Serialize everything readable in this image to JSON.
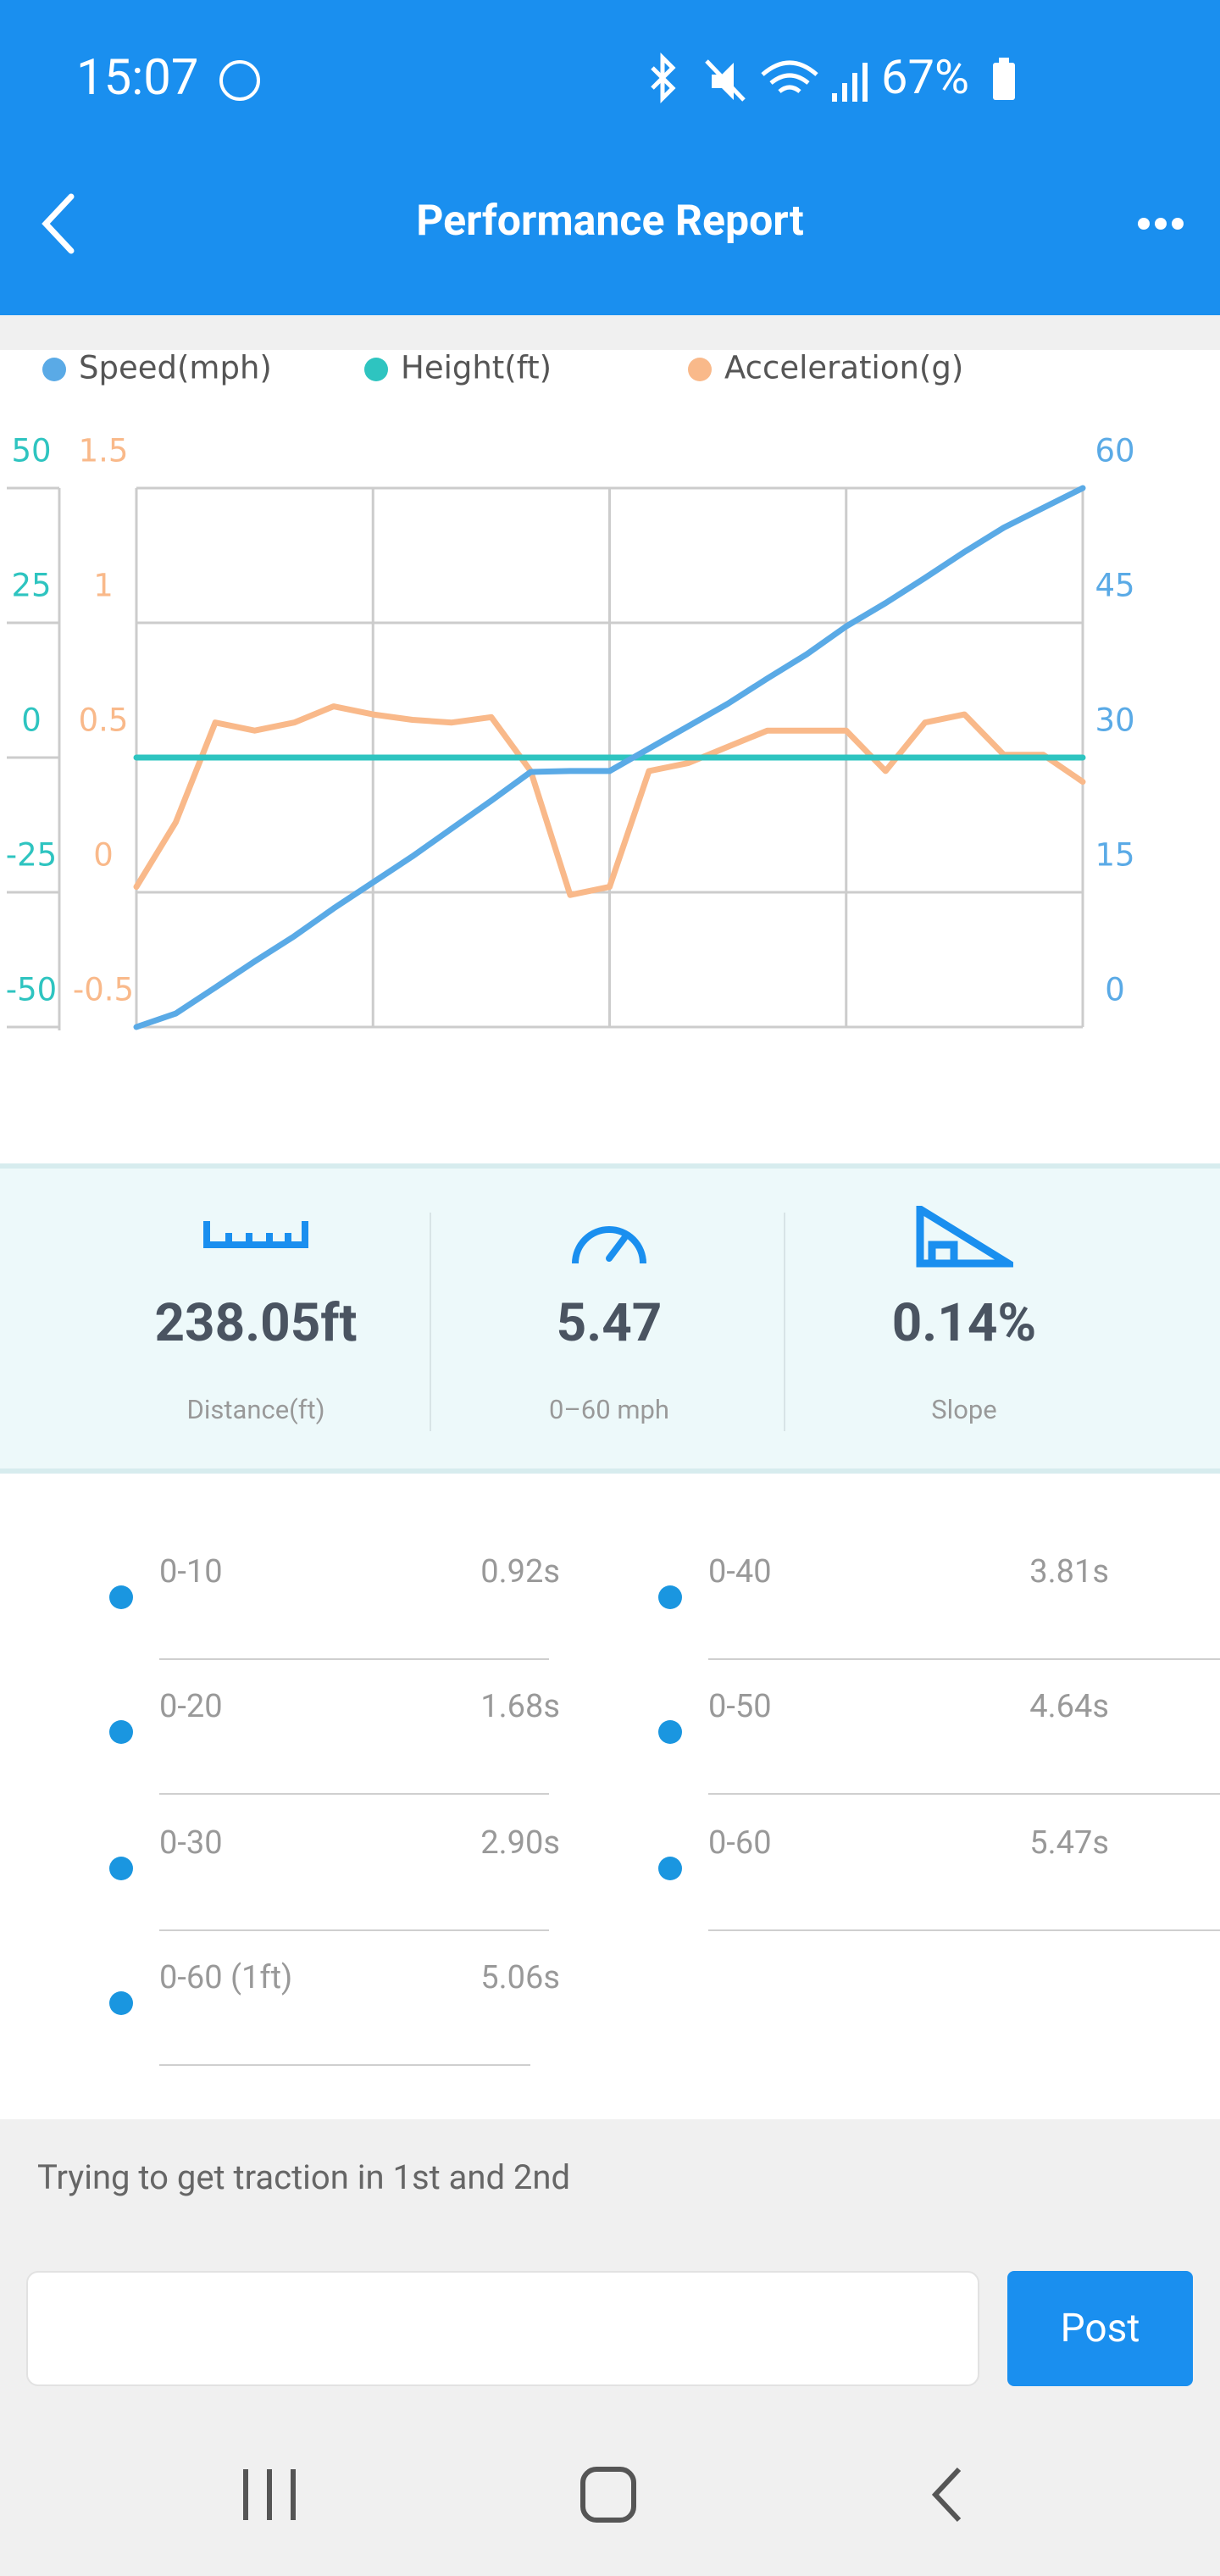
{
  "status_bar": {
    "time": "15:07",
    "battery": "67%"
  },
  "header": {
    "title": "Performance Report"
  },
  "chart_data": {
    "type": "line",
    "categories": [
      null,
      null,
      null,
      null,
      null,
      null,
      null,
      null,
      null,
      null,
      null,
      null,
      null,
      null,
      null,
      null,
      null,
      null,
      null,
      null,
      null,
      null,
      null,
      null,
      null
    ],
    "series": [
      {
        "name": "Speed(mph)",
        "color": "#5aaae6",
        "axis": "y2",
        "values": [
          0,
          1.5,
          4.4,
          7.3,
          10.1,
          13.2,
          16.1,
          19,
          22.1,
          25.2,
          28.4,
          28.5,
          28.5,
          31,
          33.5,
          36,
          38.8,
          41.5,
          44.6,
          47.2,
          50,
          52.9,
          55.6,
          57.8,
          60
        ]
      },
      {
        "name": "Height(ft)",
        "color": "#2ec4c0",
        "axis": "y",
        "values": [
          0,
          0,
          0,
          0,
          0,
          0,
          0,
          0,
          0,
          0,
          0,
          0,
          0,
          0,
          0,
          0,
          0,
          0,
          0,
          0,
          0,
          0,
          0,
          0,
          0
        ]
      },
      {
        "name": "Acceleration(g)",
        "color": "#f9b98a",
        "axis": "y3",
        "values": [
          0.02,
          0.26,
          0.63,
          0.6,
          0.63,
          0.69,
          0.66,
          0.64,
          0.63,
          0.65,
          0.45,
          -0.01,
          0.02,
          0.45,
          0.48,
          0.54,
          0.6,
          0.6,
          0.6,
          0.45,
          0.63,
          0.66,
          0.51,
          0.51,
          0.41
        ]
      }
    ],
    "ylim": [
      -50,
      50
    ],
    "yticks": [
      50,
      25,
      0,
      -25,
      -50
    ],
    "y3lim": [
      -0.5,
      1.5
    ],
    "y3ticks": [
      1.5,
      1,
      0.5,
      0,
      -0.5
    ],
    "y2lim": [
      0,
      60
    ],
    "y2ticks": [
      60,
      45,
      30,
      15,
      0
    ],
    "grid": true,
    "legend": "top"
  },
  "stats": [
    {
      "value": "238.05ft",
      "label": "Distance(ft)"
    },
    {
      "value": "5.47",
      "label": "0–60 mph"
    },
    {
      "value": "0.14%",
      "label": "Slope"
    }
  ],
  "timings": [
    {
      "label": "0-10",
      "value": "0.92s"
    },
    {
      "label": "0-40",
      "value": "3.81s"
    },
    {
      "label": "0-20",
      "value": "1.68s"
    },
    {
      "label": "0-50",
      "value": "4.64s"
    },
    {
      "label": "0-30",
      "value": "2.90s"
    },
    {
      "label": "0-60",
      "value": "5.47s"
    },
    {
      "label": "0-60 (1ft)",
      "value": "5.06s"
    }
  ],
  "comment": "Trying to get traction in 1st and 2nd",
  "post_button": "Post"
}
